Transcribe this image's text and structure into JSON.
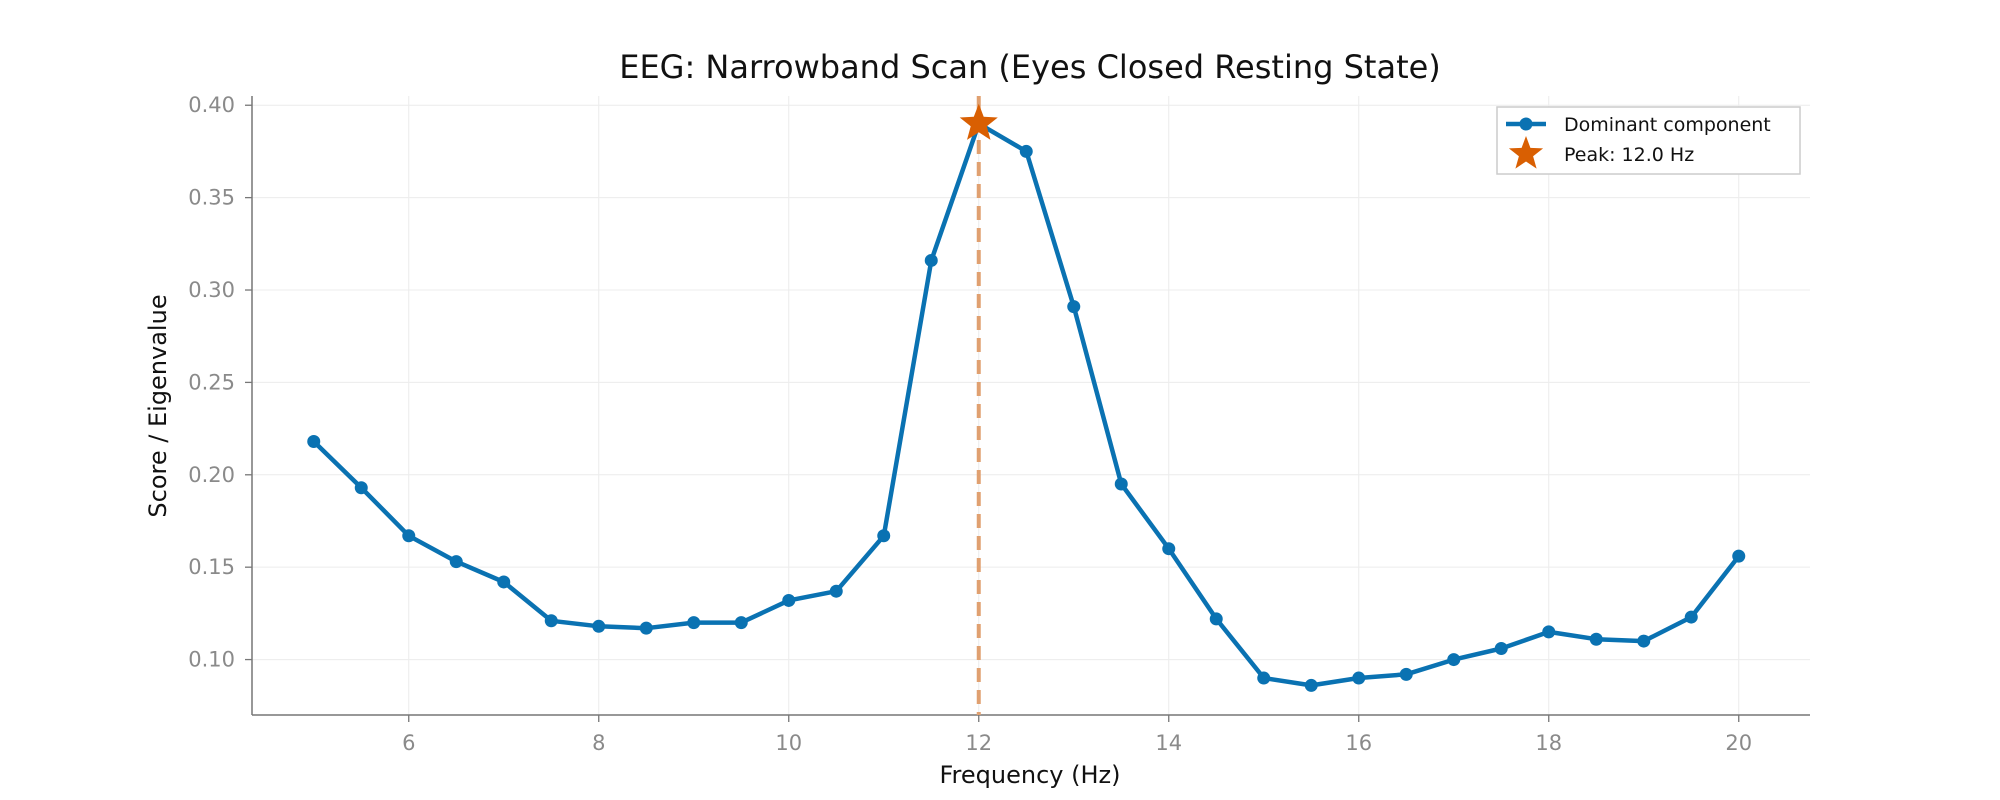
{
  "chart_data": {
    "type": "line",
    "title": "EEG: Narrowband Scan (Eyes Closed Resting State)",
    "xlabel": "Frequency (Hz)",
    "ylabel": "Score / Eigenvalue",
    "xlim": [
      4.35,
      20.75
    ],
    "ylim": [
      0.07,
      0.405
    ],
    "xticks": [
      6,
      8,
      10,
      12,
      14,
      16,
      18,
      20
    ],
    "yticks": [
      0.1,
      0.15,
      0.2,
      0.25,
      0.3,
      0.35,
      0.4
    ],
    "xtick_labels": [
      "6",
      "8",
      "10",
      "12",
      "14",
      "16",
      "18",
      "20"
    ],
    "ytick_labels": [
      "0.10",
      "0.15",
      "0.20",
      "0.25",
      "0.30",
      "0.35",
      "0.40"
    ],
    "grid": true,
    "legend_position": "top-right",
    "series": [
      {
        "name": "Dominant component",
        "color": "#0a72b2",
        "marker": "circle",
        "x": [
          5.0,
          5.5,
          6.0,
          6.5,
          7.0,
          7.5,
          8.0,
          8.5,
          9.0,
          9.5,
          10.0,
          10.5,
          11.0,
          11.5,
          12.0,
          12.5,
          13.0,
          13.5,
          14.0,
          14.5,
          15.0,
          15.5,
          16.0,
          16.5,
          17.0,
          17.5,
          18.0,
          18.5,
          19.0,
          19.5,
          20.0
        ],
        "y": [
          0.218,
          0.193,
          0.167,
          0.153,
          0.142,
          0.121,
          0.118,
          0.117,
          0.12,
          0.12,
          0.132,
          0.137,
          0.167,
          0.316,
          0.39,
          0.375,
          0.291,
          0.195,
          0.16,
          0.122,
          0.09,
          0.086,
          0.09,
          0.092,
          0.1,
          0.106,
          0.115,
          0.111,
          0.11,
          0.123,
          0.156
        ]
      }
    ],
    "peak": {
      "name": "Peak: 12.0 Hz",
      "x": 12.0,
      "y": 0.39,
      "color": "#d95f02",
      "marker": "star",
      "vline_color": "#e0a070"
    }
  }
}
